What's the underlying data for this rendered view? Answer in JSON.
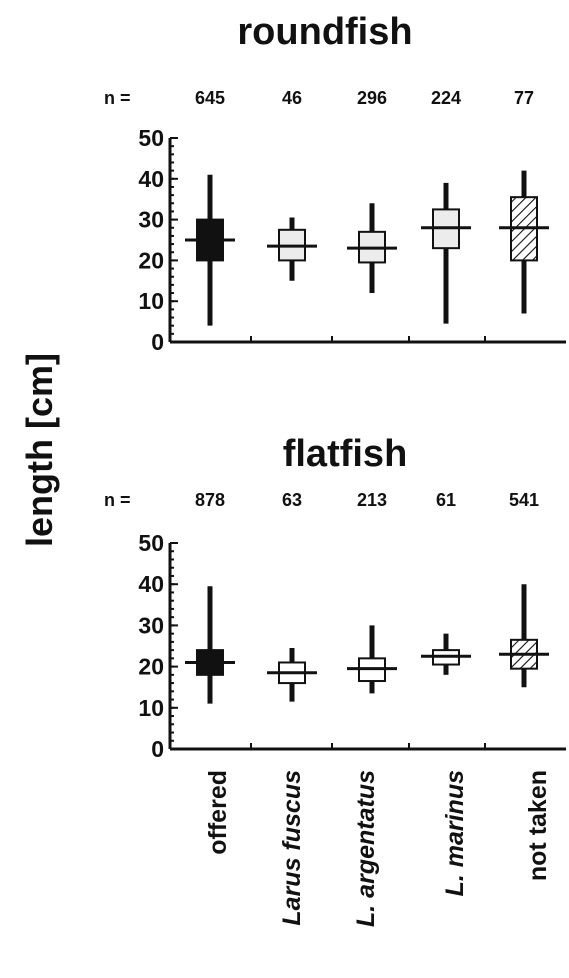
{
  "y_axis_label": "length [cm]",
  "n_prefix": "n =",
  "chart_data": [
    {
      "type": "boxplot",
      "title": "roundfish",
      "ylabel": "length [cm]",
      "ylim": [
        0,
        50
      ],
      "yticks": [
        0,
        10,
        20,
        30,
        40,
        50
      ],
      "categories": [
        "offered",
        "Larus fuscus",
        "L. argentatus",
        "L. marinus",
        "not taken"
      ],
      "n": [
        "645",
        "46",
        "296",
        "224",
        "77"
      ],
      "fills": [
        "solid-black",
        "light-grey",
        "light-grey",
        "light-grey",
        "hatched"
      ],
      "boxes": [
        {
          "min": 4,
          "q1": 20,
          "median": 25,
          "q3": 30,
          "max": 41
        },
        {
          "min": 15,
          "q1": 20,
          "median": 23.5,
          "q3": 27.5,
          "max": 30.5
        },
        {
          "min": 12,
          "q1": 19.5,
          "median": 23,
          "q3": 27,
          "max": 34
        },
        {
          "min": 4.5,
          "q1": 23,
          "median": 28,
          "q3": 32.5,
          "max": 39
        },
        {
          "min": 7,
          "q1": 20,
          "median": 28,
          "q3": 35.5,
          "max": 42
        }
      ]
    },
    {
      "type": "boxplot",
      "title": "flatfish",
      "ylabel": "length [cm]",
      "ylim": [
        0,
        50
      ],
      "yticks": [
        0,
        10,
        20,
        30,
        40,
        50
      ],
      "categories": [
        "offered",
        "Larus fuscus",
        "L. argentatus",
        "L. marinus",
        "not taken"
      ],
      "n": [
        "878",
        "63",
        "213",
        "61",
        "541"
      ],
      "fills": [
        "solid-black",
        "white",
        "white",
        "white",
        "hatched"
      ],
      "boxes": [
        {
          "min": 11,
          "q1": 18,
          "median": 21,
          "q3": 24,
          "max": 39.5
        },
        {
          "min": 11.5,
          "q1": 16,
          "median": 18.5,
          "q3": 21,
          "max": 24.5
        },
        {
          "min": 13.5,
          "q1": 16.5,
          "median": 19.5,
          "q3": 22,
          "max": 30
        },
        {
          "min": 18,
          "q1": 20.5,
          "median": 22.5,
          "q3": 24,
          "max": 28
        },
        {
          "min": 15,
          "q1": 19.5,
          "median": 23,
          "q3": 26.5,
          "max": 40
        }
      ]
    }
  ],
  "colors": {
    "ink": "#111111",
    "solid-black": "#111111",
    "light-grey": "#ececec",
    "white": "#ffffff",
    "hatched": "#ffffff"
  }
}
